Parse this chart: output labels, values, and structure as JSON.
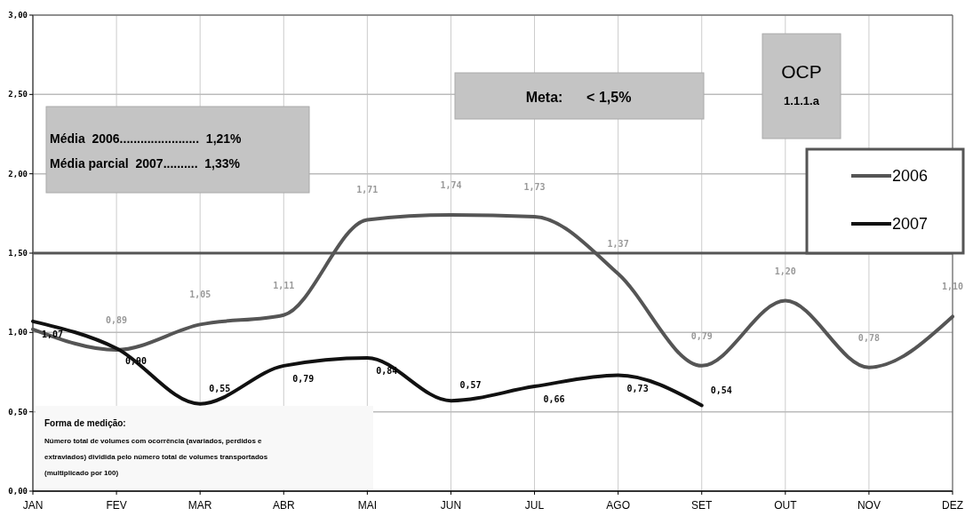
{
  "chart_data": {
    "type": "line",
    "title": "OCP",
    "subtitle": "1.1.1.a",
    "categories": [
      "JAN",
      "FEV",
      "MAR",
      "ABR",
      "MAI",
      "JUN",
      "JUL",
      "AGO",
      "SET",
      "OUT",
      "NOV",
      "DEZ"
    ],
    "series": [
      {
        "name": "2006",
        "color": "#555555",
        "values": [
          1.02,
          0.89,
          1.05,
          1.11,
          1.71,
          1.74,
          1.73,
          1.37,
          0.79,
          1.2,
          0.78,
          1.1
        ],
        "value_labels": [
          null,
          "0,89",
          "1,05",
          "1,11",
          "1,71",
          "1,74",
          "1,73",
          "1,37",
          "0,79",
          "1,20",
          "0,78",
          "1,10"
        ]
      },
      {
        "name": "2007",
        "color": "#111111",
        "values": [
          1.07,
          0.9,
          0.55,
          0.79,
          0.84,
          0.57,
          0.66,
          0.73,
          0.54,
          null,
          null,
          null
        ],
        "value_labels": [
          "1,07",
          "0,90",
          "0,55",
          "0,79",
          "0,84",
          "0,57",
          "0,66",
          "0,73",
          "0,54",
          null,
          null,
          null
        ]
      }
    ],
    "ylim": [
      0,
      3
    ],
    "yticks": [
      {
        "value": 0,
        "label": "0,00"
      },
      {
        "value": 0.5,
        "label": "0,50"
      },
      {
        "value": 1,
        "label": "1,00"
      },
      {
        "value": 1.5,
        "label": "1,50"
      },
      {
        "value": 2,
        "label": "2,00"
      },
      {
        "value": 2.5,
        "label": "2,50"
      },
      {
        "value": 3,
        "label": "3,00"
      }
    ],
    "grid": true,
    "legend": "right",
    "marker": "none",
    "line_style": "solid",
    "ref_lines": [
      {
        "axis": "y",
        "value": 1.5,
        "color": "#555555"
      }
    ],
    "annotations": [
      "Meta:      < 1,5%",
      "Média  2006.......................  1,21%",
      "Média parcial  2007..........  1,33%",
      "Forma de medição:",
      "Número total de volumes com ocorrência (avariados, perdidos e",
      "extraviados) dividida pelo número total de volumes transportados",
      "(multiplicado por 100)"
    ]
  }
}
